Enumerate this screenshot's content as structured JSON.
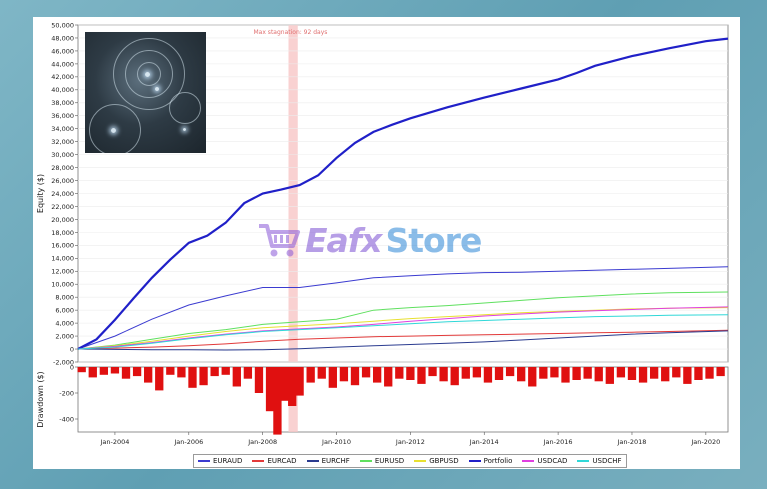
{
  "chart_data": [
    {
      "type": "line",
      "title": "",
      "xlabel": "",
      "ylabel": "Equity ($)",
      "xlim": [
        2003.0,
        2020.6
      ],
      "ylim": [
        -2000,
        50000
      ],
      "yticks": [
        -2000,
        0,
        2000,
        4000,
        6000,
        8000,
        10000,
        12000,
        14000,
        16000,
        18000,
        20000,
        22000,
        24000,
        26000,
        28000,
        30000,
        32000,
        34000,
        36000,
        38000,
        40000,
        42000,
        44000,
        46000,
        48000,
        50000
      ],
      "ytick_labels": [
        "-2,000",
        "0",
        "2,000",
        "4,000",
        "6,000",
        "8,000",
        "10,000",
        "12,000",
        "14,000",
        "16,000",
        "18,000",
        "20,000",
        "22,000",
        "24,000",
        "26,000",
        "28,000",
        "30,000",
        "32,000",
        "34,000",
        "36,000",
        "38,000",
        "40,000",
        "42,000",
        "44,000",
        "46,000",
        "48,000",
        "50,000"
      ],
      "annotation": {
        "text": "Max stagnation: 92 days",
        "x_start": 2008.7,
        "x_end": 2008.95
      },
      "grid": true,
      "legend": "bottom",
      "series": [
        {
          "name": "EURAUD",
          "color": "#3b3bd0",
          "x": [
            2003.0,
            2004.0,
            2005.0,
            2006.0,
            2007.0,
            2008.0,
            2009.0,
            2010.0,
            2011.0,
            2012.0,
            2013.0,
            2014.0,
            2015.0,
            2016.0,
            2017.0,
            2018.0,
            2019.0,
            2020.6
          ],
          "values": [
            0,
            2000,
            4600,
            6800,
            8200,
            9500,
            9500,
            10200,
            11000,
            11300,
            11600,
            11800,
            11850,
            12000,
            12150,
            12300,
            12450,
            12700
          ]
        },
        {
          "name": "EURCAD",
          "color": "#e23a3a",
          "x": [
            2003.0,
            2004.0,
            2005.0,
            2006.0,
            2007.0,
            2008.0,
            2009.0,
            2010.0,
            2011.0,
            2012.0,
            2013.0,
            2014.0,
            2015.0,
            2016.0,
            2017.0,
            2018.0,
            2019.0,
            2020.6
          ],
          "values": [
            0,
            150,
            300,
            500,
            800,
            1200,
            1500,
            1700,
            1900,
            2000,
            2100,
            2200,
            2300,
            2400,
            2500,
            2600,
            2700,
            2900
          ]
        },
        {
          "name": "EURCHF",
          "color": "#2a3b8f",
          "x": [
            2003.0,
            2004.0,
            2005.0,
            2006.0,
            2007.0,
            2008.0,
            2009.0,
            2010.0,
            2011.0,
            2012.0,
            2013.0,
            2014.0,
            2015.0,
            2016.0,
            2017.0,
            2018.0,
            2019.0,
            2020.6
          ],
          "values": [
            0,
            -50,
            -100,
            -120,
            -150,
            -100,
            50,
            300,
            500,
            700,
            900,
            1100,
            1400,
            1700,
            2000,
            2300,
            2500,
            2800
          ]
        },
        {
          "name": "EURUSD",
          "color": "#5fe05f",
          "x": [
            2003.0,
            2004.0,
            2005.0,
            2006.0,
            2007.0,
            2008.0,
            2009.0,
            2010.0,
            2011.0,
            2012.0,
            2013.0,
            2014.0,
            2015.0,
            2016.0,
            2017.0,
            2018.0,
            2019.0,
            2020.6
          ],
          "values": [
            0,
            600,
            1500,
            2400,
            3000,
            3800,
            4200,
            4600,
            6000,
            6400,
            6700,
            7100,
            7500,
            7900,
            8200,
            8500,
            8700,
            8800
          ]
        },
        {
          "name": "GBPUSD",
          "color": "#e8e030",
          "x": [
            2003.0,
            2004.0,
            2005.0,
            2006.0,
            2007.0,
            2008.0,
            2009.0,
            2010.0,
            2011.0,
            2012.0,
            2013.0,
            2014.0,
            2015.0,
            2016.0,
            2017.0,
            2018.0,
            2019.0,
            2020.6
          ],
          "values": [
            0,
            500,
            1200,
            2000,
            2700,
            3300,
            3600,
            3900,
            4300,
            4700,
            5000,
            5300,
            5600,
            5800,
            6000,
            6200,
            6300,
            6400
          ]
        },
        {
          "name": "Portfolio",
          "color": "#2020c8",
          "x": [
            2003.0,
            2003.5,
            2004.0,
            2004.5,
            2005.0,
            2005.5,
            2006.0,
            2006.5,
            2007.0,
            2007.5,
            2008.0,
            2008.5,
            2009.0,
            2009.5,
            2010.0,
            2010.5,
            2011.0,
            2011.5,
            2012.0,
            2013.0,
            2014.0,
            2015.0,
            2016.0,
            2016.5,
            2017.0,
            2018.0,
            2019.0,
            2020.0,
            2020.6
          ],
          "values": [
            0,
            1500,
            4500,
            7800,
            11000,
            13800,
            16400,
            17500,
            19500,
            22500,
            24000,
            24600,
            25300,
            26800,
            29500,
            31800,
            33500,
            34600,
            35600,
            37300,
            38800,
            40200,
            41600,
            42600,
            43700,
            45200,
            46400,
            47500,
            47900
          ]
        },
        {
          "name": "USDCAD",
          "color": "#e040e0",
          "x": [
            2003.0,
            2004.0,
            2005.0,
            2006.0,
            2007.0,
            2008.0,
            2009.0,
            2010.0,
            2011.0,
            2012.0,
            2013.0,
            2014.0,
            2015.0,
            2016.0,
            2017.0,
            2018.0,
            2019.0,
            2020.6
          ],
          "values": [
            0,
            400,
            1000,
            1700,
            2300,
            2800,
            3100,
            3400,
            3800,
            4300,
            4700,
            5100,
            5400,
            5700,
            5900,
            6100,
            6300,
            6500
          ]
        },
        {
          "name": "USDCHF",
          "color": "#30d8d8",
          "x": [
            2003.0,
            2004.0,
            2005.0,
            2006.0,
            2007.0,
            2008.0,
            2009.0,
            2010.0,
            2011.0,
            2012.0,
            2013.0,
            2014.0,
            2015.0,
            2016.0,
            2017.0,
            2018.0,
            2019.0,
            2020.6
          ],
          "values": [
            0,
            300,
            900,
            1600,
            2200,
            2700,
            3000,
            3300,
            3600,
            3900,
            4200,
            4400,
            4600,
            4800,
            5000,
            5100,
            5200,
            5300
          ]
        }
      ]
    },
    {
      "type": "bar",
      "title": "",
      "ylabel": "Drawdown ($)",
      "ylim": [
        -500,
        0
      ],
      "yticks": [
        0,
        -200,
        -400
      ],
      "ytick_labels": [
        "0",
        "-200",
        "-400"
      ],
      "xlim": [
        2003.0,
        2020.6
      ],
      "xtick_labels": [
        "Jan-2004",
        "Jan-2006",
        "Jan-2008",
        "Jan-2010",
        "Jan-2012",
        "Jan-2014",
        "Jan-2016",
        "Jan-2018",
        "Jan-2020"
      ],
      "xticks": [
        2004,
        2006,
        2008,
        2010,
        2012,
        2014,
        2016,
        2018,
        2020
      ],
      "color": "#e01010",
      "x": [
        2003.1,
        2003.4,
        2003.7,
        2004.0,
        2004.3,
        2004.6,
        2004.9,
        2005.2,
        2005.5,
        2005.8,
        2006.1,
        2006.4,
        2006.7,
        2007.0,
        2007.3,
        2007.6,
        2007.9,
        2008.2,
        2008.4,
        2008.6,
        2008.8,
        2009.0,
        2009.3,
        2009.6,
        2009.9,
        2010.2,
        2010.5,
        2010.8,
        2011.1,
        2011.4,
        2011.7,
        2012.0,
        2012.3,
        2012.6,
        2012.9,
        2013.2,
        2013.5,
        2013.8,
        2014.1,
        2014.4,
        2014.7,
        2015.0,
        2015.3,
        2015.6,
        2015.9,
        2016.2,
        2016.5,
        2016.8,
        2017.1,
        2017.4,
        2017.7,
        2018.0,
        2018.3,
        2018.6,
        2018.9,
        2019.2,
        2019.5,
        2019.8,
        2020.1,
        2020.4
      ],
      "values": [
        -40,
        -80,
        -60,
        -50,
        -90,
        -70,
        -120,
        -180,
        -60,
        -80,
        -160,
        -140,
        -70,
        -60,
        -150,
        -90,
        -200,
        -340,
        -520,
        -260,
        -300,
        -220,
        -120,
        -90,
        -160,
        -110,
        -140,
        -80,
        -120,
        -150,
        -90,
        -100,
        -130,
        -70,
        -110,
        -140,
        -90,
        -80,
        -120,
        -100,
        -70,
        -110,
        -150,
        -90,
        -80,
        -120,
        -100,
        -90,
        -110,
        -130,
        -80,
        -100,
        -120,
        -90,
        -110,
        -80,
        -130,
        -100,
        -90,
        -70
      ]
    }
  ],
  "legend_labels": [
    "EURAUD",
    "EURCAD",
    "EURCHF",
    "EURUSD",
    "GBPUSD",
    "Portfolio",
    "USDCAD",
    "USDCHF"
  ],
  "watermark": {
    "text_a": "Eafx",
    "text_b": "Store"
  }
}
